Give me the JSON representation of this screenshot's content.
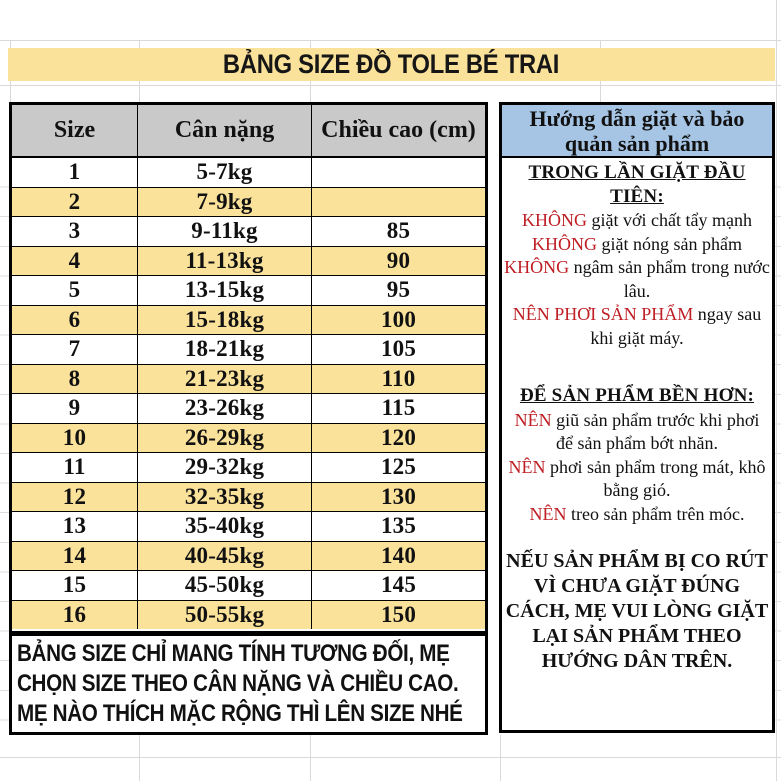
{
  "banner": {
    "title": "BẢNG SIZE ĐỒ TOLE BÉ TRAI"
  },
  "size_table": {
    "columns": [
      "Size",
      "Cân nặng",
      "Chiều cao (cm)"
    ],
    "rows": [
      [
        "1",
        "5-7kg",
        ""
      ],
      [
        "2",
        "7-9kg",
        ""
      ],
      [
        "3",
        "9-11kg",
        "85"
      ],
      [
        "4",
        "11-13kg",
        "90"
      ],
      [
        "5",
        "13-15kg",
        "95"
      ],
      [
        "6",
        "15-18kg",
        "100"
      ],
      [
        "7",
        "18-21kg",
        "105"
      ],
      [
        "8",
        "21-23kg",
        "110"
      ],
      [
        "9",
        "23-26kg",
        "115"
      ],
      [
        "10",
        "26-29kg",
        "120"
      ],
      [
        "11",
        "29-32kg",
        "125"
      ],
      [
        "12",
        "32-35kg",
        "130"
      ],
      [
        "13",
        "35-40kg",
        "135"
      ],
      [
        "14",
        "40-45kg",
        "140"
      ],
      [
        "15",
        "45-50kg",
        "145"
      ],
      [
        "16",
        "50-55kg",
        "150"
      ]
    ],
    "note_lines": [
      "BẢNG SIZE CHỈ MANG TÍNH TƯƠNG ĐỐI,  MẸ",
      "CHỌN SIZE THEO CÂN NẶNG VÀ CHIỀU CAO.",
      "MẸ NÀO THÍCH MẶC RỘNG THÌ LÊN SIZE NHÉ"
    ]
  },
  "care_panel": {
    "title": "Hướng dẫn giặt và bảo quản sản phẩm",
    "sections": [
      {
        "heading": "TRONG LẦN GIẶT ĐẦU TIÊN:",
        "lines": [
          [
            {
              "t": "KHÔNG",
              "red": true
            },
            {
              "t": " giặt với chất tẩy mạnh"
            }
          ],
          [
            {
              "t": "KHÔNG",
              "red": true
            },
            {
              "t": " giặt nóng sản phẩm"
            }
          ],
          [
            {
              "t": "KHÔNG",
              "red": true
            },
            {
              "t": " ngâm sản phẩm trong nước lâu."
            }
          ],
          [
            {
              "t": "NÊN PHƠI SẢN PHẨM",
              "red": true
            },
            {
              "t": " ngay sau khi giặt máy."
            }
          ]
        ]
      },
      {
        "heading": "ĐỂ SẢN PHẨM BỀN HƠN:",
        "lines": [
          [
            {
              "t": "NÊN",
              "red": true
            },
            {
              "t": " giũ sản phẩm trước khi phơi để sản phẩm bớt nhăn."
            }
          ],
          [
            {
              "t": "NÊN",
              "red": true
            },
            {
              "t": " phơi sản phẩm trong mát, khô bằng gió."
            }
          ],
          [
            {
              "t": "NÊN",
              "red": true
            },
            {
              "t": " treo sản phẩm trên móc."
            }
          ]
        ]
      },
      {
        "heading": null,
        "lines": [
          [
            {
              "t": "NẾU SẢN PHẨM BỊ CO RÚT VÌ CHƯA GIẶT ĐÚNG CÁCH, MẸ VUI LÒNG GIẶT LẠI SẢN PHẨM THEO HƯỚNG DÂN TRÊN."
            }
          ]
        ]
      }
    ]
  },
  "colors": {
    "row_yellow": "#FAE29B",
    "header_gray": "#C9C9C9",
    "care_blue": "#A6C5E5",
    "warn_red": "#BE1E24",
    "border_black": "#000000"
  }
}
